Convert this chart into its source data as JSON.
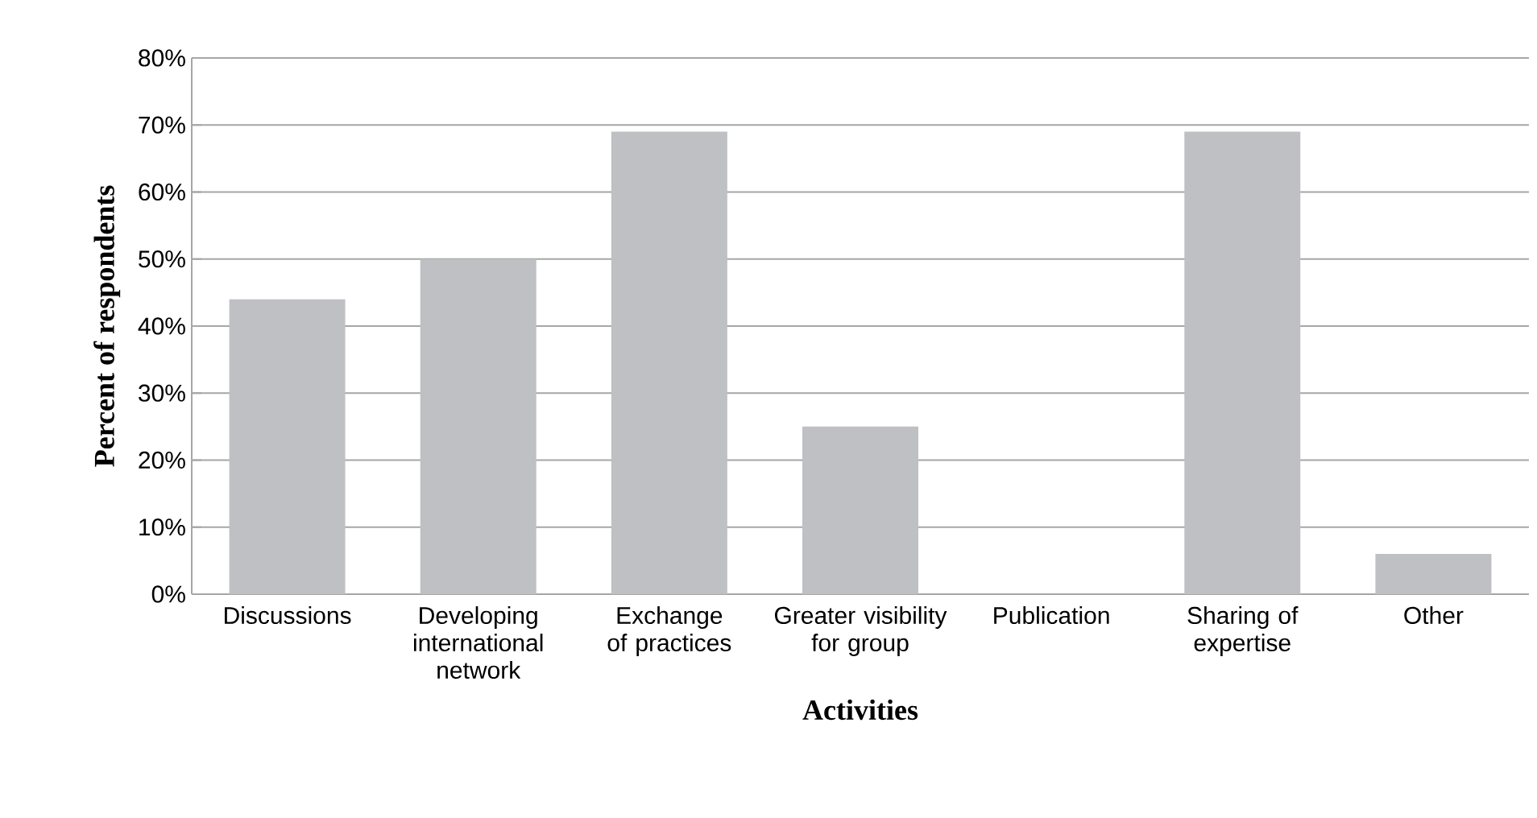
{
  "chart_data": {
    "type": "bar",
    "xlabel": "Activities",
    "ylabel": "Percent of respondents",
    "categories": [
      "Discussions",
      "Developing international network",
      "Exchange of practices",
      "Greater visibility for group",
      "Publication",
      "Sharing of expertise",
      "Other"
    ],
    "values": [
      44,
      50,
      69,
      25,
      0,
      69,
      6
    ],
    "color": "#bfc0c4",
    "ylim": [
      0,
      80
    ],
    "yticks": [
      {
        "value": 0,
        "label": "0%"
      },
      {
        "value": 10,
        "label": "10%"
      },
      {
        "value": 20,
        "label": "20%"
      },
      {
        "value": 30,
        "label": "30%"
      },
      {
        "value": 40,
        "label": "40%"
      },
      {
        "value": 50,
        "label": "50%"
      },
      {
        "value": 60,
        "label": "60%"
      },
      {
        "value": 70,
        "label": "70%"
      },
      {
        "value": 80,
        "label": "80%"
      }
    ],
    "grid": "y"
  }
}
